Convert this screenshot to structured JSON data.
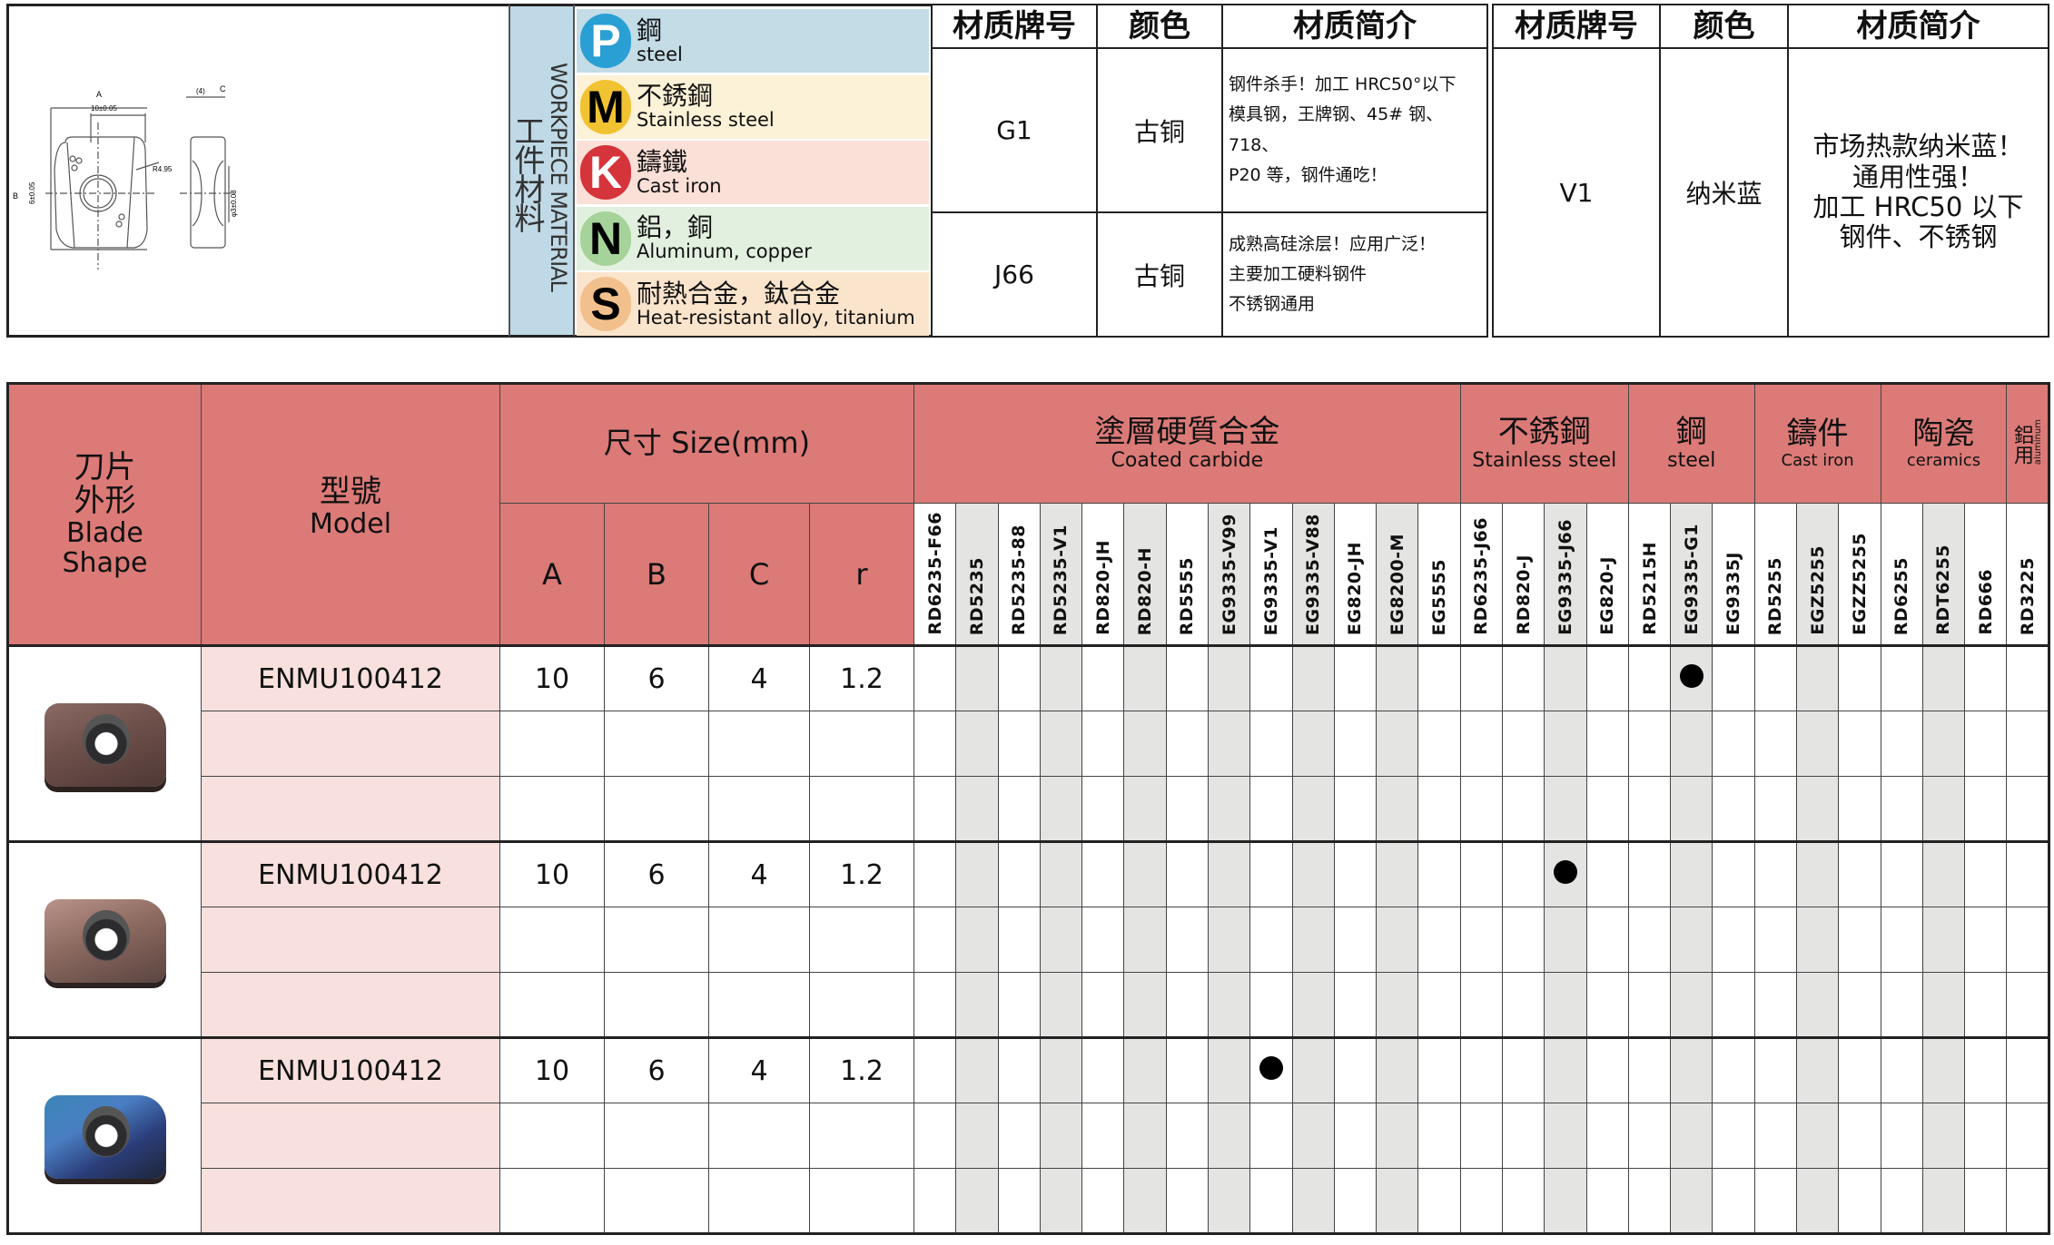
{
  "drawing": {
    "dim_a_label": "A",
    "dim_a_value": "10±0.05",
    "dim_b_label": "B",
    "dim_b_value": "6±0.05",
    "radius": "R4.95",
    "dim_c_label": "C",
    "dim_c_value": "(4)",
    "hole": "φ3±0.08"
  },
  "workpiece": {
    "label_cn": "工件材料",
    "label_en": "WORKPIECE MATERIAL",
    "items": [
      {
        "letter": "P",
        "cn": "鋼",
        "en": "steel",
        "circle": "#2a9fd4",
        "letter_color": "#fff",
        "bg": "#c3dce6"
      },
      {
        "letter": "M",
        "cn": "不銹鋼",
        "en": "Stainless steel",
        "circle": "#f1c232",
        "letter_color": "#000",
        "bg": "#fcf2d7"
      },
      {
        "letter": "K",
        "cn": "鑄鐵",
        "en": "Cast iron",
        "circle": "#d5343a",
        "letter_color": "#fff",
        "bg": "#fbe0d8"
      },
      {
        "letter": "N",
        "cn": "鋁，銅",
        "en": "Aluminum, copper",
        "circle": "#a6d39a",
        "letter_color": "#000",
        "bg": "#e2f0df"
      },
      {
        "letter": "S",
        "cn": "耐熱合金，鈦合金",
        "en": "Heat-resistant alloy, titanium",
        "circle": "#f2c08c",
        "letter_color": "#000",
        "bg": "#fbe4cc"
      }
    ]
  },
  "grade_table_1": {
    "headers": [
      "材质牌号",
      "颜色",
      "材质简介"
    ],
    "rows": [
      {
        "grade": "G1",
        "color": "古铜",
        "desc": [
          "钢件杀手！加工 HRC50°以下",
          "模具钢，王牌钢、45# 钢、718、",
          "P20 等，钢件通吃！"
        ]
      },
      {
        "grade": "J66",
        "color": "古铜",
        "desc": [
          "成熟高硅涂层！应用广泛！",
          "主要加工硬料钢件",
          "不锈钢通用"
        ]
      }
    ]
  },
  "grade_table_2": {
    "headers": [
      "材质牌号",
      "颜色",
      "材质简介"
    ],
    "rows": [
      {
        "grade": "V1",
        "color": "纳米蓝",
        "desc": [
          "市场热款纳米蓝！",
          "通用性强！",
          "加工 HRC50 以下",
          "钢件、不锈钢"
        ]
      }
    ]
  },
  "main_table": {
    "shape_header": {
      "cn1": "刀片",
      "cn2": "外形",
      "en1": "Blade",
      "en2": "Shape"
    },
    "model_header": {
      "cn": "型號",
      "en": "Model"
    },
    "size_header": "尺寸 Size(mm)",
    "dim_headers": [
      "A",
      "B",
      "C",
      "r"
    ],
    "groups": [
      {
        "cn": "塗層硬質合金",
        "en": "Coated carbide",
        "grades": [
          "RD6235-F66",
          "RD5235",
          "RD5235-88",
          "RD5235-V1",
          "RD820-JH",
          "RD820-H",
          "RD5555",
          "EG9335-V99",
          "EG9335-V1",
          "EG9335-V88",
          "EG820-JH",
          "EG8200-M",
          "EG5555"
        ]
      },
      {
        "cn": "不銹鋼",
        "en": "Stainless steel",
        "grades": [
          "RD6235-J66",
          "RD820-J",
          "EG9335-J66",
          "EG820-J"
        ]
      },
      {
        "cn": "鋼",
        "en": "steel",
        "grades": [
          "RD5215H",
          "EG9335-G1",
          "EG9335J"
        ]
      },
      {
        "cn": "鑄件",
        "en": "Cast iron",
        "grades": [
          "RD5255",
          "EGZ5255",
          "EGZZ5255"
        ]
      },
      {
        "cn": "陶瓷",
        "en": "ceramics",
        "grades": [
          "RD6255",
          "RDT6255",
          "RD666"
        ]
      },
      {
        "cn": "鋁用",
        "en": "aluminum",
        "grades": [
          "RD3225"
        ]
      }
    ],
    "products": [
      {
        "coating": "bronze",
        "model": "ENMU100412",
        "A": "10",
        "B": "6",
        "C": "4",
        "r": "1.2",
        "grade_marked": "EG9335-G1"
      },
      {
        "coating": "copper",
        "model": "ENMU100412",
        "A": "10",
        "B": "6",
        "C": "4",
        "r": "1.2",
        "grade_marked": "EG9335-J66"
      },
      {
        "coating": "nano-blue",
        "model": "ENMU100412",
        "A": "10",
        "B": "6",
        "C": "4",
        "r": "1.2",
        "grade_marked": "EG9335-V1"
      }
    ]
  },
  "colors": {
    "header": "#db7a77",
    "model_cell": "#f7e0dd",
    "stripe": "#e4e4e3"
  }
}
